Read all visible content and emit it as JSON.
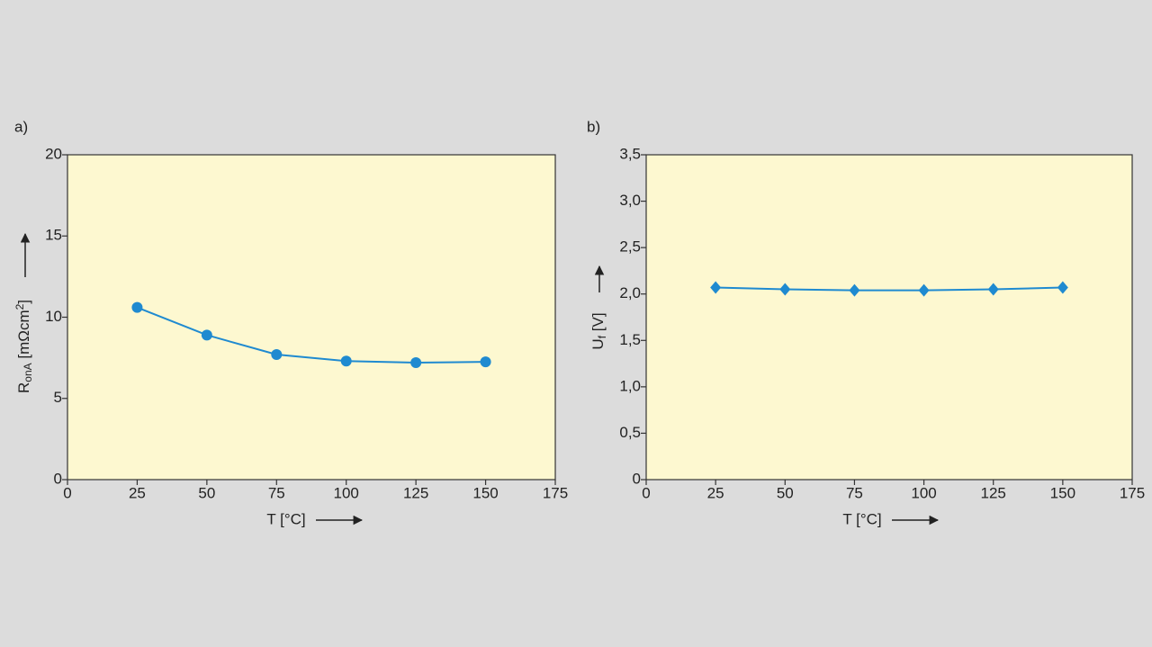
{
  "chart_data": [
    {
      "type": "line",
      "panel": "a)",
      "ylabel": [
        "R",
        "onA",
        " [mΩcm",
        "2",
        "]"
      ],
      "xlabel": "T [°C]",
      "x": [
        25,
        50,
        75,
        100,
        125,
        150
      ],
      "values": [
        10.6,
        8.9,
        7.7,
        7.3,
        7.2,
        7.25
      ],
      "color": "#1f8ad0",
      "marker": "circle",
      "xlim": [
        0,
        175
      ],
      "xticks": [
        0,
        25,
        50,
        75,
        100,
        125,
        150,
        175
      ],
      "ylim": [
        0,
        20
      ],
      "yticks": [
        0,
        5,
        10,
        15,
        20
      ]
    },
    {
      "type": "line",
      "panel": "b)",
      "ylabel": [
        "U",
        "f",
        " [V]"
      ],
      "xlabel": "T [°C]",
      "x": [
        25,
        50,
        75,
        100,
        125,
        150
      ],
      "values": [
        2.07,
        2.05,
        2.04,
        2.04,
        2.05,
        2.07
      ],
      "color": "#1f8ad0",
      "marker": "diamond",
      "xlim": [
        0,
        175
      ],
      "xticks": [
        0,
        25,
        50,
        75,
        100,
        125,
        150,
        175
      ],
      "ylim": [
        0,
        3.5
      ],
      "yticks": [
        0,
        {
          "value": 0.5,
          "label": "0,5"
        },
        {
          "value": 1,
          "label": "1,0"
        },
        {
          "value": 1.5,
          "label": "1,5"
        },
        {
          "value": 2,
          "label": "2,0"
        },
        {
          "value": 2.5,
          "label": "2,5"
        },
        {
          "value": 3,
          "label": "3,0"
        },
        {
          "value": 3.5,
          "label": "3,5"
        }
      ]
    }
  ]
}
